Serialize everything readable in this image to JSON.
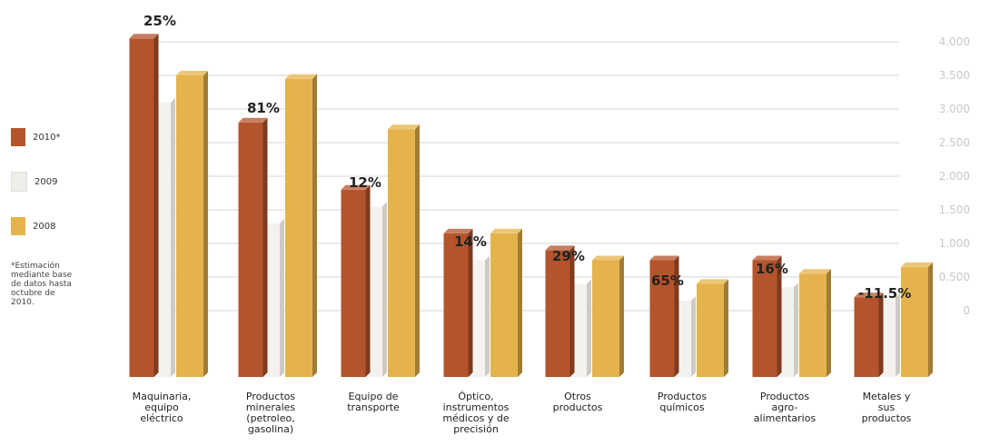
{
  "chart_data": {
    "type": "bar",
    "categories": [
      [
        "Maquinaria,",
        "equipo",
        "eléctrico"
      ],
      [
        "Productos",
        "minerales",
        "(petroleo,",
        "gasolina)"
      ],
      [
        "Equipo de",
        "transporte"
      ],
      [
        "Óptico,",
        "instrumentos",
        "médicos y de",
        "precisión"
      ],
      [
        "Otros",
        "productos"
      ],
      [
        "Productos",
        "químicos"
      ],
      [
        "Productos",
        "agro-",
        "alimentarios"
      ],
      [
        "Metales y",
        "sus",
        "productos"
      ]
    ],
    "series": [
      {
        "name": "2010*",
        "color": "#b4542c",
        "values": [
          4.05,
          2.8,
          1.8,
          1.15,
          0.9,
          0.75,
          0.75,
          0.2
        ]
      },
      {
        "name": "2009",
        "color": "#efede8",
        "values": [
          3.1,
          1.3,
          1.55,
          0.75,
          0.4,
          0.15,
          0.35,
          0.2
        ]
      },
      {
        "name": "2008",
        "color": "#e5b34b",
        "values": [
          3.5,
          3.45,
          2.7,
          1.15,
          0.75,
          0.4,
          0.55,
          0.65
        ]
      }
    ],
    "annotations": [
      "25%",
      "81%",
      "12%",
      "14%",
      "29%",
      "65%",
      "16%",
      "-11.5%"
    ],
    "yticks": [
      "4.000",
      "3.500",
      "3.000",
      "2.500",
      "2.000",
      "1.500",
      "1.000",
      "0.500",
      "0"
    ],
    "ylim": [
      -0.5,
      4.0
    ],
    "legend_position": "left",
    "grid": true,
    "note": [
      "*Estimación",
      "mediante base",
      "de datos hasta",
      "octubre de",
      "2010."
    ]
  }
}
